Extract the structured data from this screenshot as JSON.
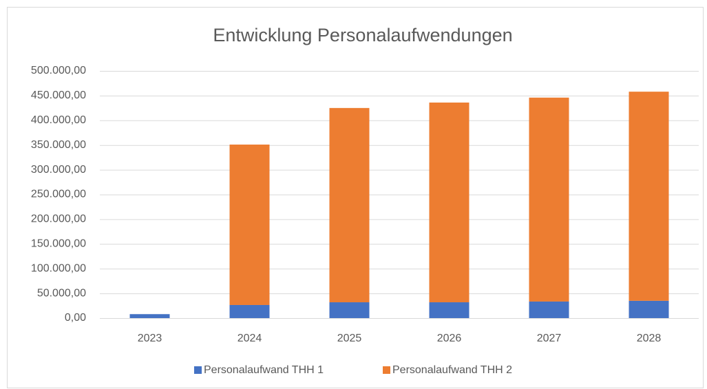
{
  "chart_data": {
    "type": "stacked_bar",
    "title": "Entwicklung Personalaufwendungen",
    "categories": [
      "2023",
      "2024",
      "2025",
      "2026",
      "2027",
      "2028"
    ],
    "series": [
      {
        "name": "Personalaufwand THH 1",
        "color": "#4472c4",
        "values": [
          8000,
          26500,
          32000,
          32000,
          33500,
          35000
        ]
      },
      {
        "name": "Personalaufwand THH 2",
        "color": "#ed7d31",
        "values": [
          0,
          324500,
          393000,
          404000,
          412500,
          423000
        ]
      }
    ],
    "ylim": [
      0,
      500000
    ],
    "yticks": [
      {
        "value": 0,
        "label": "0,00"
      },
      {
        "value": 50000,
        "label": "50.000,00"
      },
      {
        "value": 100000,
        "label": "100.000,00"
      },
      {
        "value": 150000,
        "label": "150.000,00"
      },
      {
        "value": 200000,
        "label": "200.000,00"
      },
      {
        "value": 250000,
        "label": "250.000,00"
      },
      {
        "value": 300000,
        "label": "300.000,00"
      },
      {
        "value": 350000,
        "label": "350.000,00"
      },
      {
        "value": 400000,
        "label": "400.000,00"
      },
      {
        "value": 450000,
        "label": "450.000,00"
      },
      {
        "value": 500000,
        "label": "500.000,00"
      }
    ],
    "grid": true,
    "legend": "bottom"
  }
}
